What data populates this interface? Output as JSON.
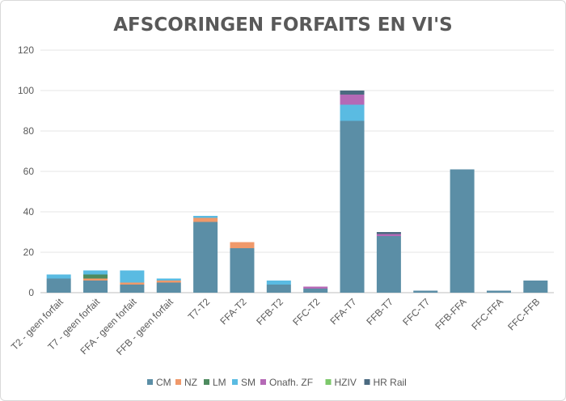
{
  "chart_data": {
    "type": "bar",
    "stacked": true,
    "title": "AFSCORINGEN FORFAITS EN VI'S",
    "xlabel": "",
    "ylabel": "",
    "ylim": [
      0,
      120
    ],
    "yticks": [
      0,
      20,
      40,
      60,
      80,
      100,
      120
    ],
    "grid": true,
    "legend_position": "bottom",
    "categories": [
      "T2 - geen forfait",
      "T7 - geen forfait",
      "FFA - geen forfait",
      "FFB - geen forfait",
      "T7-T2",
      "FFA-T2",
      "FFB-T2",
      "FFC-T2",
      "FFA-T7",
      "FFB-T7",
      "FFC-T7",
      "FFB-FFA",
      "FFC-FFA",
      "FFC-FFB"
    ],
    "series": [
      {
        "name": "CM",
        "color": "#5b8ea6",
        "values": [
          7,
          6,
          4,
          5,
          35,
          22,
          4,
          2,
          85,
          28,
          1,
          61,
          1,
          6
        ]
      },
      {
        "name": "NZ",
        "color": "#f0996a",
        "values": [
          0,
          1,
          1,
          1,
          2,
          3,
          0,
          0,
          0,
          0,
          0,
          0,
          0,
          0
        ]
      },
      {
        "name": "LM",
        "color": "#4e8b5f",
        "values": [
          0,
          2,
          0,
          0,
          0,
          0,
          0,
          0,
          0,
          0,
          0,
          0,
          0,
          0
        ]
      },
      {
        "name": "SM",
        "color": "#5abbe2",
        "values": [
          2,
          2,
          6,
          1,
          1,
          0,
          2,
          0,
          8,
          0,
          0,
          0,
          0,
          0
        ]
      },
      {
        "name": "Onafh. ZF",
        "color": "#b569b6",
        "values": [
          0,
          0,
          0,
          0,
          0,
          0,
          0,
          1,
          5,
          1,
          0,
          0,
          0,
          0
        ]
      },
      {
        "name": "HZIV",
        "color": "#7dc86b",
        "values": [
          0,
          0,
          0,
          0,
          0,
          0,
          0,
          0,
          0,
          0,
          0,
          0,
          0,
          0
        ]
      },
      {
        "name": "HR Rail",
        "color": "#4b6a80",
        "values": [
          0,
          0,
          0,
          0,
          0,
          0,
          0,
          0,
          2,
          1,
          0,
          0,
          0,
          0
        ]
      }
    ]
  }
}
